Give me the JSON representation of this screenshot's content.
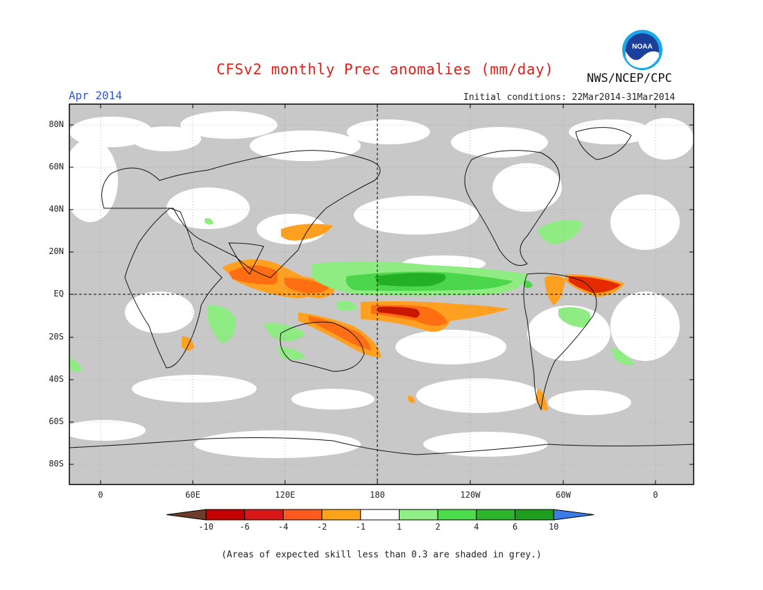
{
  "header": {
    "title": "CFSv2 monthly Prec anomalies (mm/day)",
    "month": "Apr 2014",
    "initial_conditions": "Initial conditions: 22Mar2014-31Mar2014",
    "agency": "NWS/NCEP/CPC",
    "logo_text": "NOAA"
  },
  "map": {
    "lat_labels": [
      "80N",
      "60N",
      "40N",
      "20N",
      "EQ",
      "20S",
      "40S",
      "60S",
      "80S"
    ],
    "lon_labels": [
      "0",
      "60E",
      "120E",
      "180",
      "120W",
      "60W",
      "0"
    ],
    "colors": {
      "skill_grey": "#c8c8c8",
      "neutral": "#ffffff",
      "dry_strong": "#e52a00",
      "dry_moderate": "#ff6e12",
      "dry_weak": "#ffa020",
      "wet_weak": "#8fec82",
      "wet_moderate": "#4cd64c",
      "wet_strong": "#24b024",
      "wet_extreme": "#1a9a1a",
      "very_dry": "#c81800"
    }
  },
  "colorbar": {
    "labels": [
      "-10",
      "-6",
      "-4",
      "-2",
      "-1",
      "1",
      "2",
      "4",
      "6",
      "10"
    ],
    "colors": [
      "#6e3c2a",
      "#c40000",
      "#d81818",
      "#ff5a1e",
      "#ffa41a",
      "#ffffff",
      "#90ee88",
      "#4cdc4c",
      "#2cb42c",
      "#1e9e1e",
      "#3c7ce8"
    ]
  },
  "footnote": "(Areas of expected skill less than 0.3 are shaded in grey.)"
}
